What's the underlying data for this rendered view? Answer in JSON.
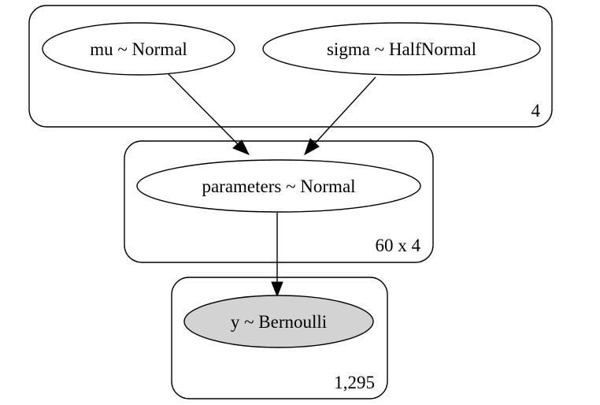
{
  "plates": [
    {
      "id": "plate-4",
      "label": "4"
    },
    {
      "id": "plate-60x4",
      "label": "60 x 4"
    },
    {
      "id": "plate-1295",
      "label": "1,295"
    }
  ],
  "nodes": [
    {
      "id": "mu",
      "label": "mu ~ Normal",
      "observed": false
    },
    {
      "id": "sigma",
      "label": "sigma ~ HalfNormal",
      "observed": false
    },
    {
      "id": "parameters",
      "label": "parameters ~ Normal",
      "observed": false
    },
    {
      "id": "y",
      "label": "y ~ Bernoulli",
      "observed": true
    }
  ],
  "edges": [
    {
      "from": "mu",
      "to": "parameters"
    },
    {
      "from": "sigma",
      "to": "parameters"
    },
    {
      "from": "parameters",
      "to": "y"
    }
  ],
  "colors": {
    "observed_fill": "#d3d3d3",
    "latent_fill": "#ffffff",
    "stroke": "#000000"
  }
}
